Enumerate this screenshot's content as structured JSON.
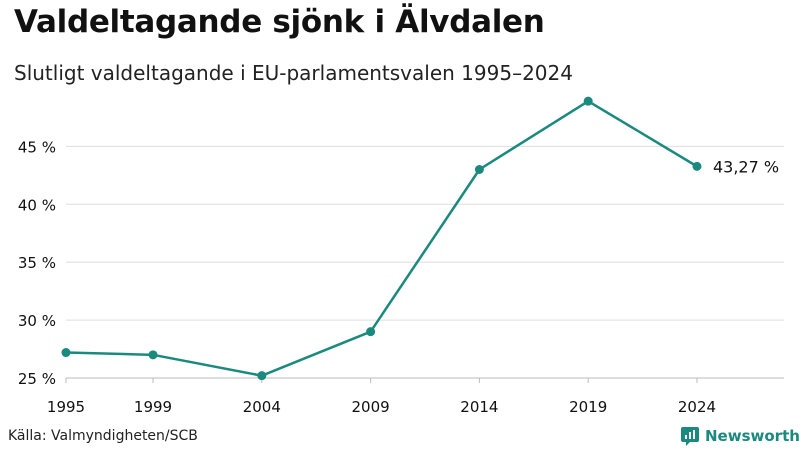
{
  "header": {
    "title": "Valdeltagande sjönk i Älvdalen",
    "subtitle": "Slutligt valdeltagande i EU-parlamentsvalen 1995–2024"
  },
  "footer": {
    "source": "Källa: Valmyndigheten/SCB",
    "brand": "Newsworthy",
    "brand_icon": "newsworthy-logo-icon"
  },
  "colors": {
    "line": "#1a8a7e",
    "grid": "#dddddd",
    "axis": "#bbbbbb",
    "text": "#111111"
  },
  "chart_data": {
    "type": "line",
    "title": "Valdeltagande sjönk i Älvdalen",
    "subtitle": "Slutligt valdeltagande i EU-parlamentsvalen 1995–2024",
    "xlabel": "",
    "ylabel": "",
    "x": [
      1995,
      1999,
      2004,
      2009,
      2014,
      2019,
      2024
    ],
    "x_tick_labels": [
      "1995",
      "1999",
      "2004",
      "2009",
      "2014",
      "2019",
      "2024"
    ],
    "xlim": [
      1995,
      2028
    ],
    "y_ticks": [
      25,
      30,
      35,
      40,
      45
    ],
    "y_tick_labels": [
      "25 %",
      "30 %",
      "35 %",
      "40 %",
      "45 %"
    ],
    "ylim": [
      25,
      49
    ],
    "grid": true,
    "series": [
      {
        "name": "Valdeltagande",
        "values": [
          27.2,
          27.0,
          25.2,
          29.0,
          43.0,
          48.9,
          43.27
        ]
      }
    ],
    "annotations": [
      {
        "x": 2024,
        "y": 43.27,
        "text": "43,27 %"
      }
    ]
  }
}
